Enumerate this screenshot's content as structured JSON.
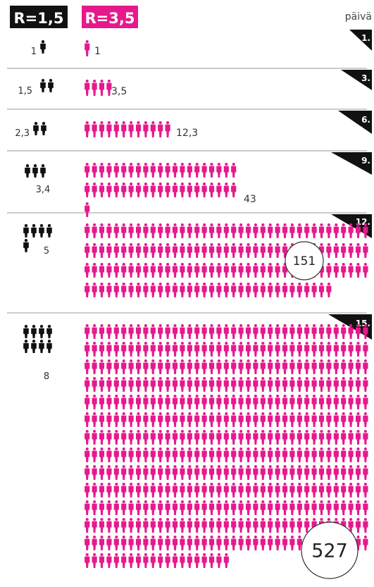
{
  "chart_data": {
    "type": "pictogram",
    "legend": [
      {
        "label": "R=1,5",
        "color": "#111111"
      },
      {
        "label": "R=3,5",
        "color": "#e6198c"
      }
    ],
    "day_header": "päivä",
    "rows": [
      {
        "day": "1.",
        "low_label": "1",
        "low_value": 1,
        "high_label": "1",
        "high_value": 1
      },
      {
        "day": "3.",
        "low_label": "1,5",
        "low_value": 1.5,
        "high_label": "3,5",
        "high_value": 3.5
      },
      {
        "day": "6.",
        "low_label": "2,3",
        "low_value": 2.3,
        "high_label": "12,3",
        "high_value": 12.3
      },
      {
        "day": "9.",
        "low_label": "3,4",
        "low_value": 3.4,
        "high_label": "43",
        "high_value": 43
      },
      {
        "day": "12.",
        "low_label": "5",
        "low_value": 5,
        "high_label": "151",
        "high_value": 151
      },
      {
        "day": "15.",
        "low_label": "8",
        "low_value": 8,
        "high_label": "527",
        "high_value": 527
      }
    ]
  }
}
